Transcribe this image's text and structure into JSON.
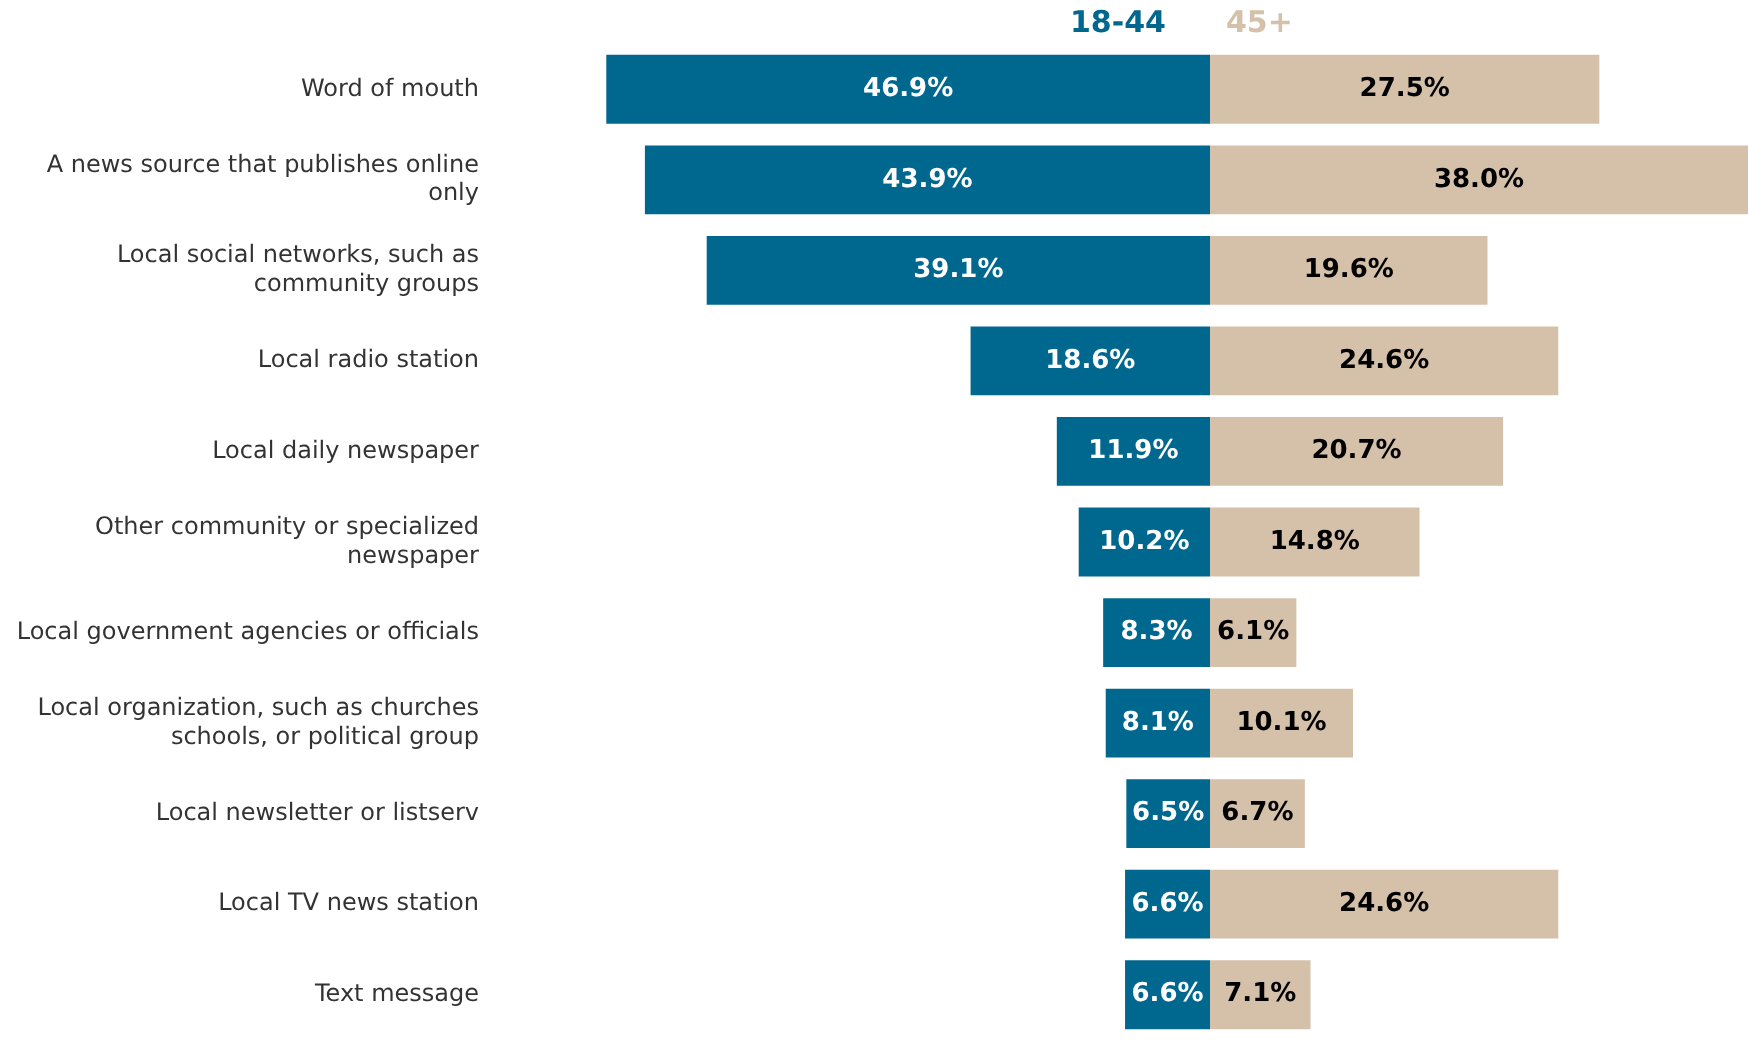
{
  "chart_data": [
    {
      "type": "bar",
      "orientation": "horizontal",
      "legend": "top",
      "xlim": [
        47,
        0
      ],
      "categories": [
        "Word of mouth",
        "A news source that publishes online only",
        "Local social networks, such as community groups",
        "Local radio station",
        "Local daily newspaper",
        "Other community or specialized newspaper",
        "Local government agencies or officials",
        "Local organization, such as churches schools, or political group",
        "Local newsletter or listserv",
        "Local TV news station",
        "Text message"
      ],
      "series": [
        {
          "name": "18-44",
          "color": "#00678f",
          "values": [
            46.9,
            43.9,
            39.1,
            18.6,
            11.9,
            10.2,
            8.3,
            8.1,
            6.5,
            6.6,
            6.6
          ],
          "value_labels": [
            "46.9%",
            "43.9%",
            "39.1%",
            "18.6%",
            "11.9%",
            "10.2%",
            "8.3%",
            "8.1%",
            "6.5%",
            "6.6%",
            "6.6%"
          ]
        }
      ]
    },
    {
      "type": "bar",
      "orientation": "horizontal",
      "legend": "top",
      "xlim": [
        0,
        38
      ],
      "tick_labels": false,
      "categories": [
        null,
        null,
        null,
        null,
        null,
        null,
        null,
        null,
        null,
        null,
        null
      ],
      "series": [
        {
          "name": "45+",
          "color": "#d5c1aa",
          "values": [
            27.5,
            38.0,
            19.6,
            24.6,
            20.7,
            14.8,
            6.1,
            10.1,
            6.7,
            24.6,
            7.1
          ],
          "value_labels": [
            "27.5%",
            "38.0%",
            "19.6%",
            "24.6%",
            "20.7%",
            "14.8%",
            "6.1%",
            "10.1%",
            "6.7%",
            "24.6%",
            "7.1%"
          ]
        }
      ]
    }
  ]
}
